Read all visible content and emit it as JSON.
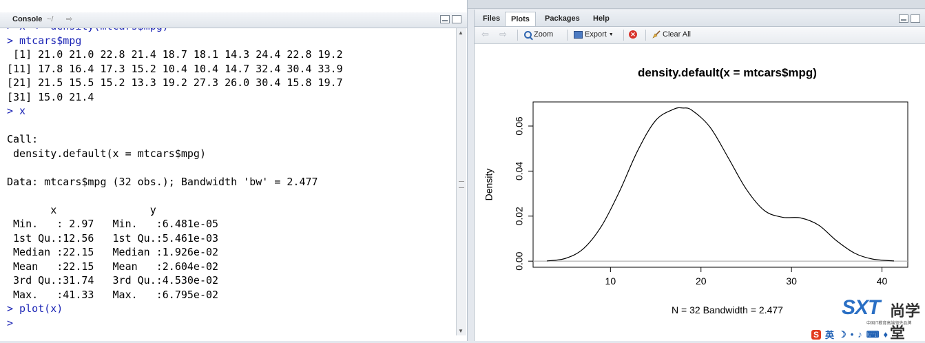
{
  "console": {
    "title": "Console",
    "path": "~/",
    "lines": [
      {
        "type": "cmd",
        "text": "> x <- density(mtcars$mpg)"
      },
      {
        "type": "cmd",
        "text": "> mtcars$mpg"
      },
      {
        "type": "out",
        "text": " [1] 21.0 21.0 22.8 21.4 18.7 18.1 14.3 24.4 22.8 19.2"
      },
      {
        "type": "out",
        "text": "[11] 17.8 16.4 17.3 15.2 10.4 10.4 14.7 32.4 30.4 33.9"
      },
      {
        "type": "out",
        "text": "[21] 21.5 15.5 15.2 13.3 19.2 27.3 26.0 30.4 15.8 19.7"
      },
      {
        "type": "out",
        "text": "[31] 15.0 21.4"
      },
      {
        "type": "cmd",
        "text": "> x"
      },
      {
        "type": "out",
        "text": ""
      },
      {
        "type": "out",
        "text": "Call:"
      },
      {
        "type": "out",
        "text": " density.default(x = mtcars$mpg)"
      },
      {
        "type": "out",
        "text": ""
      },
      {
        "type": "out",
        "text": "Data: mtcars$mpg (32 obs.); Bandwidth 'bw' = 2.477"
      },
      {
        "type": "out",
        "text": ""
      },
      {
        "type": "out",
        "text": "       x               y"
      },
      {
        "type": "out",
        "text": " Min.   : 2.97   Min.   :6.481e-05"
      },
      {
        "type": "out",
        "text": " 1st Qu.:12.56   1st Qu.:5.461e-03"
      },
      {
        "type": "out",
        "text": " Median :22.15   Median :1.926e-02"
      },
      {
        "type": "out",
        "text": " Mean   :22.15   Mean   :2.604e-02"
      },
      {
        "type": "out",
        "text": " 3rd Qu.:31.74   3rd Qu.:4.530e-02"
      },
      {
        "type": "out",
        "text": " Max.   :41.33   Max.   :6.795e-02"
      },
      {
        "type": "cmd",
        "text": "> plot(x)"
      },
      {
        "type": "cmd",
        "text": ">"
      }
    ]
  },
  "tabs": [
    {
      "label": "Files",
      "active": false
    },
    {
      "label": "Plots",
      "active": true
    },
    {
      "label": "Packages",
      "active": false
    },
    {
      "label": "Help",
      "active": false
    }
  ],
  "toolbar": {
    "zoom_label": "Zoom",
    "export_label": "Export",
    "clear_label": "Clear All"
  },
  "chart_data": {
    "type": "line",
    "title": "density.default(x = mtcars$mpg)",
    "xlabel": "N = 32   Bandwidth = 2.477",
    "ylabel": "Density",
    "xlim": [
      2.97,
      41.33
    ],
    "ylim": [
      0,
      0.068
    ],
    "xticks": [
      10,
      20,
      30,
      40
    ],
    "yticks": [
      0.0,
      0.02,
      0.04,
      0.06
    ],
    "ytick_labels": [
      "0.00",
      "0.02",
      "0.04",
      "0.06"
    ],
    "grid": false,
    "x": [
      2.97,
      5,
      7,
      9,
      11,
      13,
      15,
      17,
      18,
      19,
      21,
      23,
      25,
      27,
      29,
      31,
      33,
      35,
      37,
      39,
      41.33
    ],
    "y": [
      0.0001,
      0.0012,
      0.0055,
      0.0155,
      0.031,
      0.049,
      0.0625,
      0.0675,
      0.068,
      0.067,
      0.0595,
      0.046,
      0.032,
      0.0225,
      0.0195,
      0.0192,
      0.016,
      0.009,
      0.0035,
      0.0009,
      0.0001
    ]
  },
  "watermark": {
    "logo": "SXT",
    "cn": "尚学堂",
    "sub": "中国IT教育高端领先品牌"
  },
  "taskbar": {
    "ime": "S",
    "lang": "英"
  }
}
